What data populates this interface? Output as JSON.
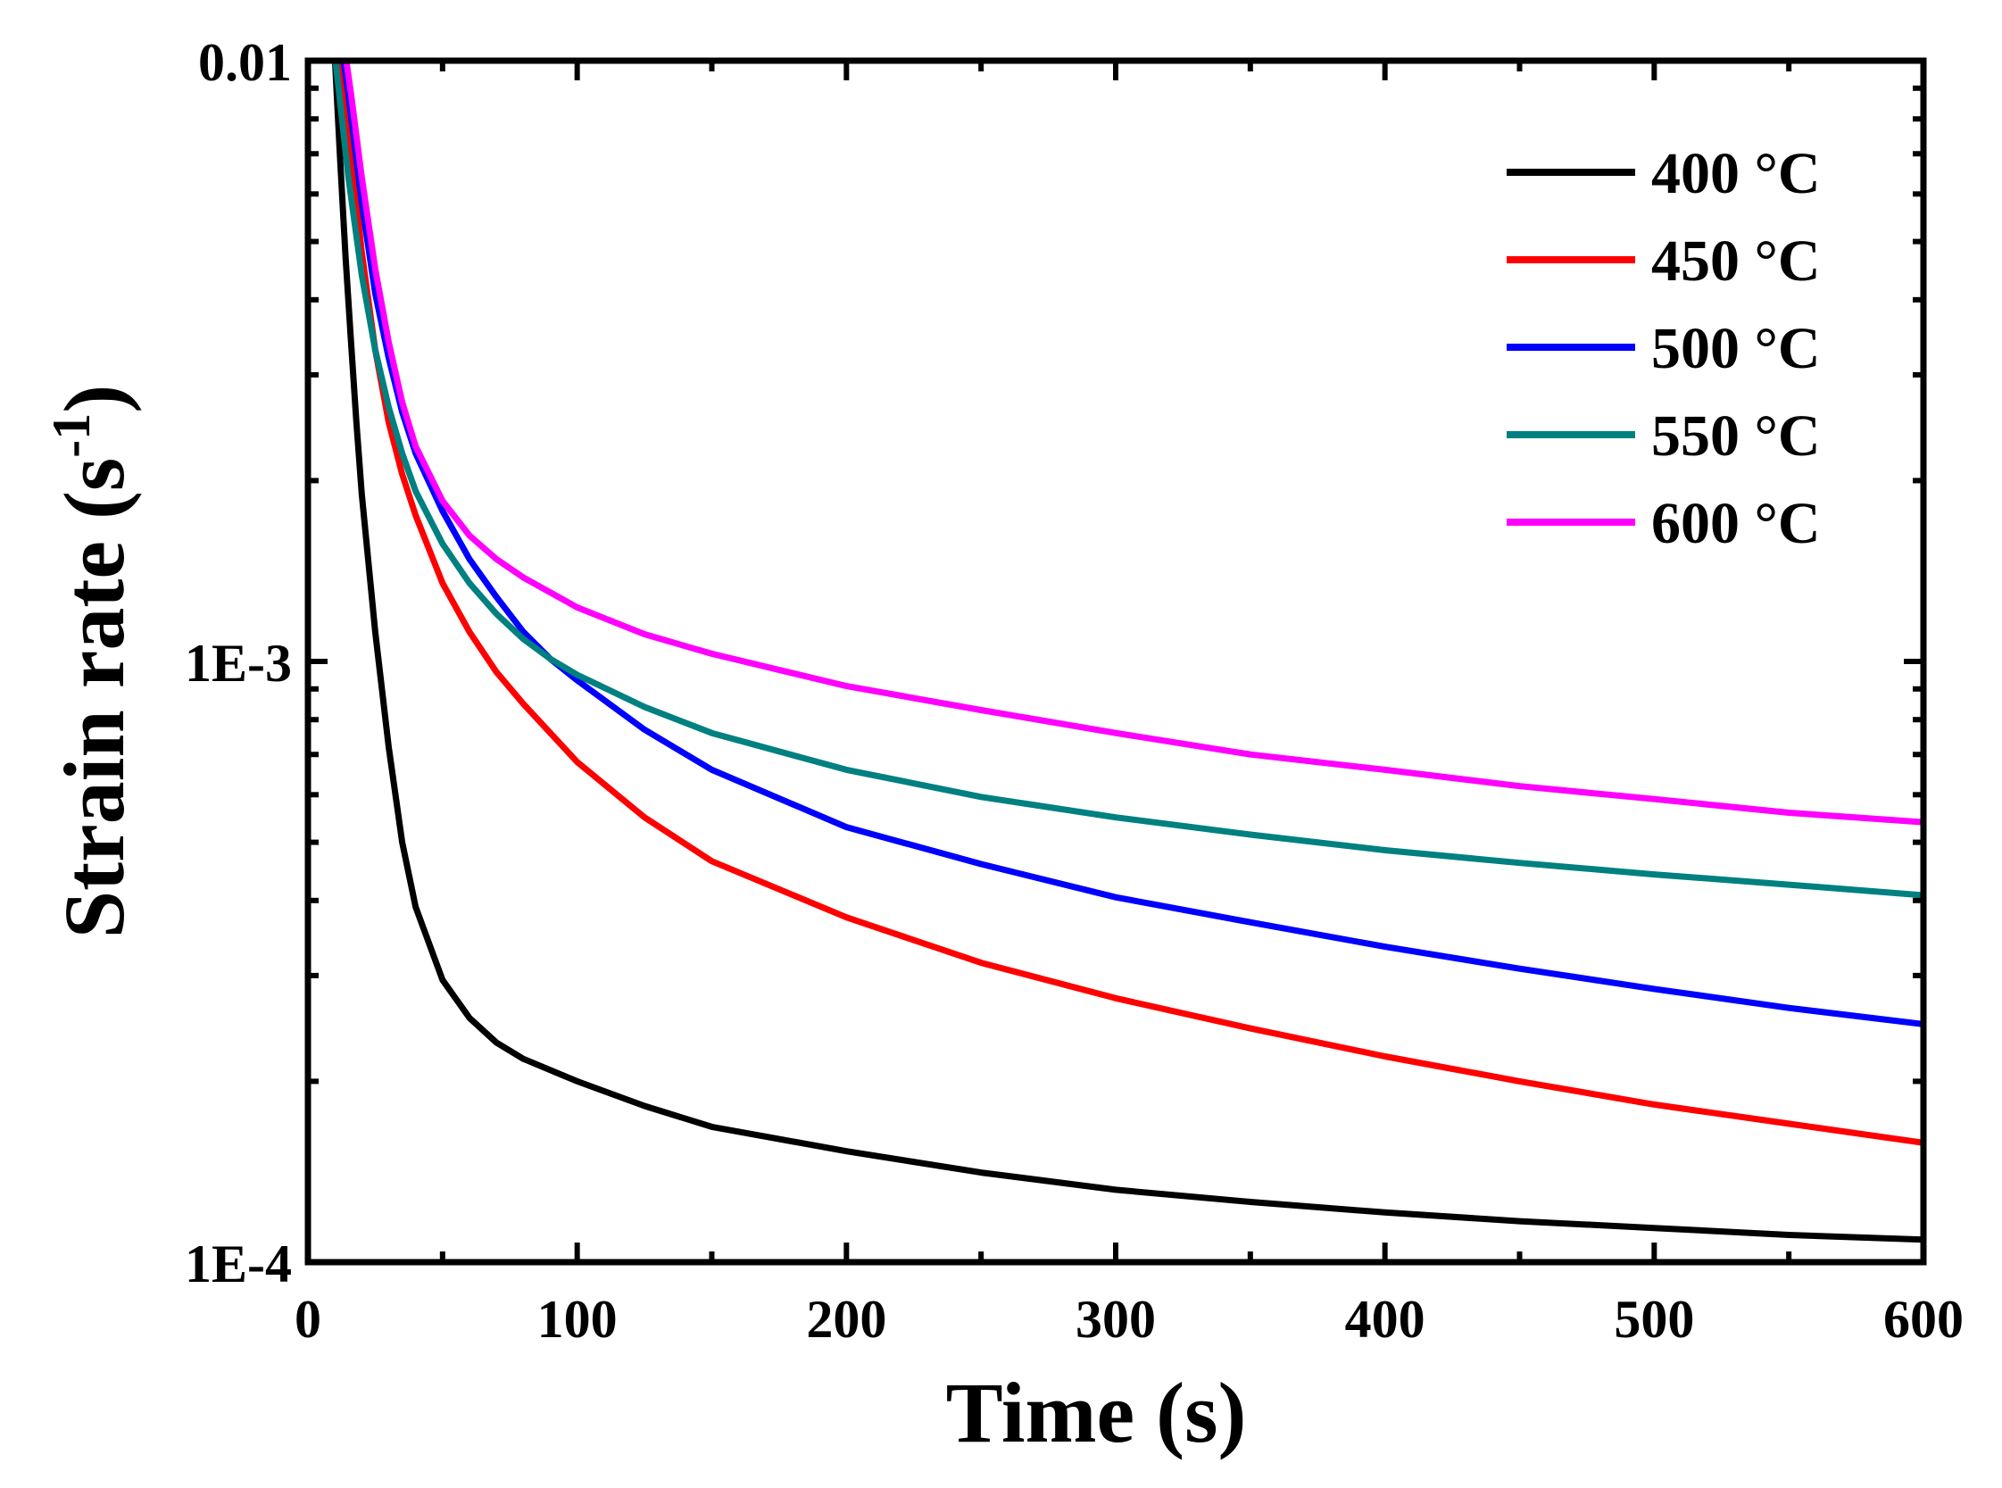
{
  "chart_data": {
    "type": "line",
    "xlabel": "Time (s)",
    "ylabel": "Strain rate (s",
    "ylabel_superscript": "-1",
    "ylabel_close": ")",
    "xlim": [
      0,
      600
    ],
    "ylim": [
      0.0001,
      0.01
    ],
    "yscale": "log",
    "grid": false,
    "legend_position": "top-right",
    "x_ticks": [
      {
        "value": 0,
        "label": "0"
      },
      {
        "value": 100,
        "label": "100"
      },
      {
        "value": 200,
        "label": "200"
      },
      {
        "value": 300,
        "label": "300"
      },
      {
        "value": 400,
        "label": "400"
      },
      {
        "value": 500,
        "label": "500"
      },
      {
        "value": 600,
        "label": "600"
      }
    ],
    "y_ticks": [
      {
        "value": 0.01,
        "label": "0.01"
      },
      {
        "value": 0.001,
        "label": "1E-3"
      },
      {
        "value": 0.0001,
        "label": "1E-4"
      }
    ],
    "series": [
      {
        "name": "400 °C",
        "color": "#000000",
        "x": [
          10,
          12,
          14,
          16,
          18,
          20,
          25,
          30,
          35,
          40,
          50,
          60,
          70,
          80,
          100,
          125,
          150,
          200,
          250,
          300,
          350,
          400,
          450,
          500,
          550,
          600
        ],
        "y": [
          0.0101,
          0.0068,
          0.0047,
          0.0034,
          0.0025,
          0.0019,
          0.00112,
          0.00072,
          0.0005,
          0.00039,
          0.000295,
          0.000255,
          0.000232,
          0.000218,
          0.0002,
          0.000182,
          0.000168,
          0.000153,
          0.000141,
          0.000132,
          0.000126,
          0.000121,
          0.000117,
          0.000114,
          0.000111,
          0.000109
        ]
      },
      {
        "name": "450 °C",
        "color": "#ff0000",
        "x": [
          12,
          15,
          20,
          25,
          30,
          35,
          40,
          50,
          60,
          70,
          80,
          100,
          125,
          150,
          200,
          250,
          300,
          350,
          400,
          450,
          500,
          550,
          600
        ],
        "y": [
          0.0102,
          0.0078,
          0.0048,
          0.0033,
          0.0025,
          0.00205,
          0.00175,
          0.00135,
          0.00112,
          0.00096,
          0.00085,
          0.00068,
          0.00055,
          0.000465,
          0.000375,
          0.000315,
          0.000275,
          0.000245,
          0.00022,
          0.0002,
          0.000183,
          0.00017,
          0.000158
        ]
      },
      {
        "name": "500 °C",
        "color": "#0000ff",
        "x": [
          13,
          15,
          20,
          25,
          30,
          35,
          40,
          50,
          60,
          70,
          80,
          90,
          100,
          125,
          150,
          200,
          250,
          300,
          350,
          400,
          450,
          500,
          550,
          600
        ],
        "y": [
          0.0102,
          0.0088,
          0.0058,
          0.0041,
          0.0032,
          0.0026,
          0.00222,
          0.00178,
          0.00148,
          0.00128,
          0.00112,
          0.00101,
          0.00093,
          0.00077,
          0.00066,
          0.00053,
          0.00046,
          0.000405,
          0.000368,
          0.000335,
          0.000308,
          0.000285,
          0.000265,
          0.000249
        ]
      },
      {
        "name": "550 °C",
        "color": "#008080",
        "x": [
          10,
          12,
          15,
          20,
          25,
          30,
          35,
          40,
          50,
          60,
          70,
          80,
          90,
          100,
          125,
          150,
          200,
          250,
          300,
          350,
          400,
          450,
          500,
          550,
          600
        ],
        "y": [
          0.0102,
          0.0085,
          0.0064,
          0.0044,
          0.0033,
          0.00265,
          0.00222,
          0.00192,
          0.00157,
          0.00135,
          0.0012,
          0.00109,
          0.00101,
          0.00095,
          0.00084,
          0.00076,
          0.00066,
          0.000595,
          0.00055,
          0.000515,
          0.000485,
          0.000462,
          0.000442,
          0.000425,
          0.000408
        ]
      },
      {
        "name": "600 °C",
        "color": "#ff00ff",
        "x": [
          14,
          16,
          20,
          25,
          30,
          35,
          40,
          50,
          60,
          70,
          80,
          100,
          125,
          150,
          200,
          250,
          300,
          350,
          400,
          450,
          500,
          550,
          600
        ],
        "y": [
          0.0102,
          0.0088,
          0.0064,
          0.0045,
          0.0034,
          0.0027,
          0.00228,
          0.00185,
          0.00162,
          0.00148,
          0.00138,
          0.00123,
          0.00111,
          0.00103,
          0.00091,
          0.00083,
          0.00076,
          0.0007,
          0.00066,
          0.00062,
          0.00059,
          0.00056,
          0.00054
        ]
      }
    ]
  }
}
